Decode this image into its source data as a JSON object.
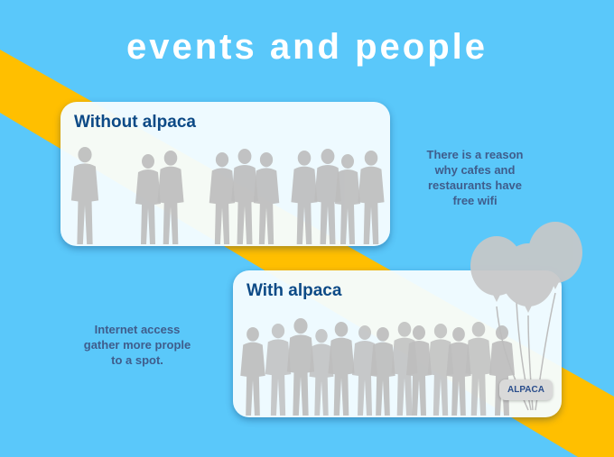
{
  "slide": {
    "title": "events and people",
    "colors": {
      "background": "#5ac8fa",
      "stripe": "#ffbf00",
      "card_title": "#0d4a86",
      "note_text": "#3f5d8c",
      "silhouette": "#bdbdbd"
    }
  },
  "without": {
    "title": "Without alpaca",
    "note_lines": [
      "There is a reason",
      "why cafes and",
      "restaurants have",
      "free wifi"
    ]
  },
  "with": {
    "title": "With alpaca",
    "note_lines": [
      "Internet access",
      "gather more prople",
      "to a spot."
    ],
    "badge": "ALPACA"
  },
  "icons": [
    "people-silhouette-icon",
    "balloon-icon"
  ]
}
